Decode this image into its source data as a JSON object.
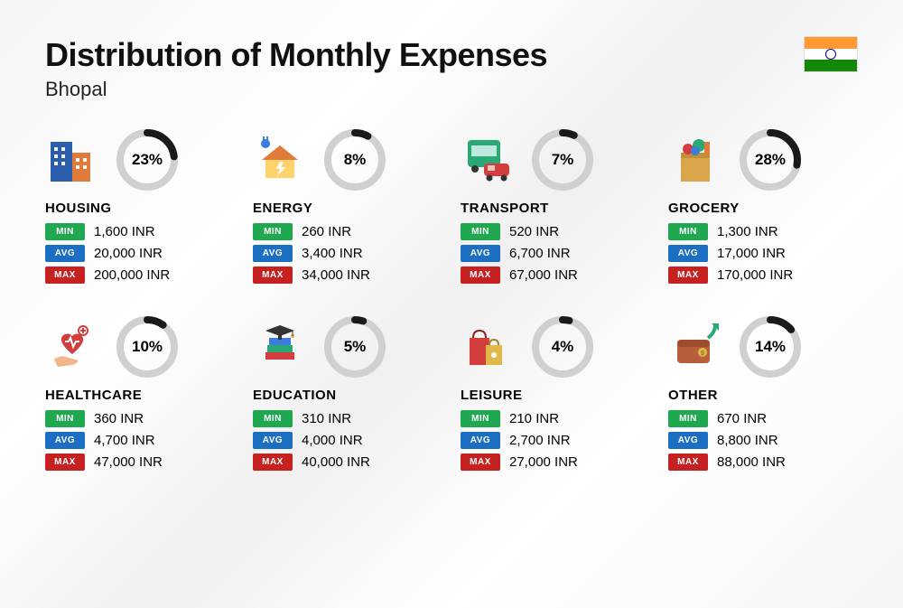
{
  "title": "Distribution of Monthly Expenses",
  "subtitle": "Bhopal",
  "flag": {
    "top": "#FF9933",
    "mid": "#ffffff",
    "bot": "#138808",
    "chakra": "#000080"
  },
  "ring": {
    "bg_color": "#d0d0d0",
    "fg_color": "#1a1a1a",
    "stroke_width": 8,
    "radius": 30
  },
  "badge_colors": {
    "min": "#1fa850",
    "avg": "#1b6ec2",
    "max": "#c62121"
  },
  "labels": {
    "min": "MIN",
    "avg": "AVG",
    "max": "MAX"
  },
  "currency": "INR",
  "categories": [
    {
      "key": "housing",
      "name": "HOUSING",
      "percent": 23,
      "min": "1,600",
      "avg": "20,000",
      "max": "200,000",
      "icon": "buildings"
    },
    {
      "key": "energy",
      "name": "ENERGY",
      "percent": 8,
      "min": "260",
      "avg": "3,400",
      "max": "34,000",
      "icon": "energy-house"
    },
    {
      "key": "transport",
      "name": "TRANSPORT",
      "percent": 7,
      "min": "520",
      "avg": "6,700",
      "max": "67,000",
      "icon": "bus-car"
    },
    {
      "key": "grocery",
      "name": "GROCERY",
      "percent": 28,
      "min": "1,300",
      "avg": "17,000",
      "max": "170,000",
      "icon": "grocery-bag"
    },
    {
      "key": "healthcare",
      "name": "HEALTHCARE",
      "percent": 10,
      "min": "360",
      "avg": "4,700",
      "max": "47,000",
      "icon": "heart-hand"
    },
    {
      "key": "education",
      "name": "EDUCATION",
      "percent": 5,
      "min": "310",
      "avg": "4,000",
      "max": "40,000",
      "icon": "grad-books"
    },
    {
      "key": "leisure",
      "name": "LEISURE",
      "percent": 4,
      "min": "210",
      "avg": "2,700",
      "max": "27,000",
      "icon": "shopping-bags"
    },
    {
      "key": "other",
      "name": "OTHER",
      "percent": 14,
      "min": "670",
      "avg": "8,800",
      "max": "88,000",
      "icon": "wallet-arrow"
    }
  ]
}
